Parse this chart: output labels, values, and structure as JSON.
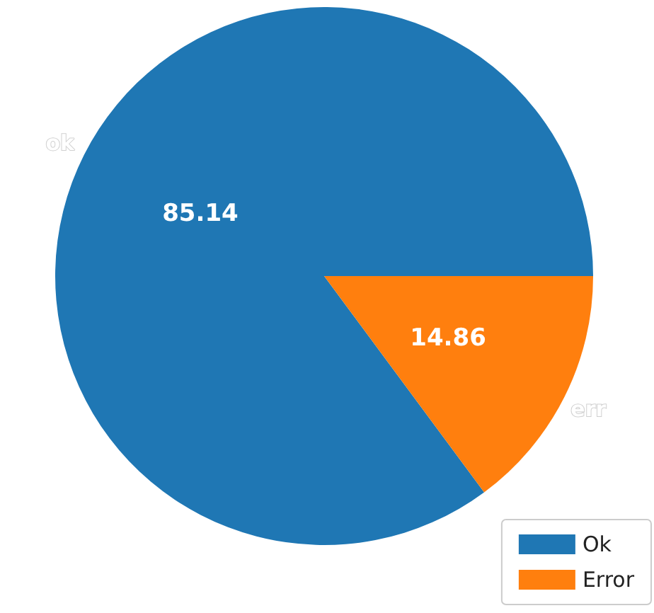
{
  "chart_data": {
    "type": "pie",
    "categories": [
      "Ok",
      "Error"
    ],
    "values": [
      85.14,
      14.86
    ],
    "colors": [
      "#1f77b4",
      "#ff7f0e"
    ],
    "data_labels": true,
    "legend": "bottom right",
    "annotations": [
      "ok",
      "err"
    ]
  }
}
